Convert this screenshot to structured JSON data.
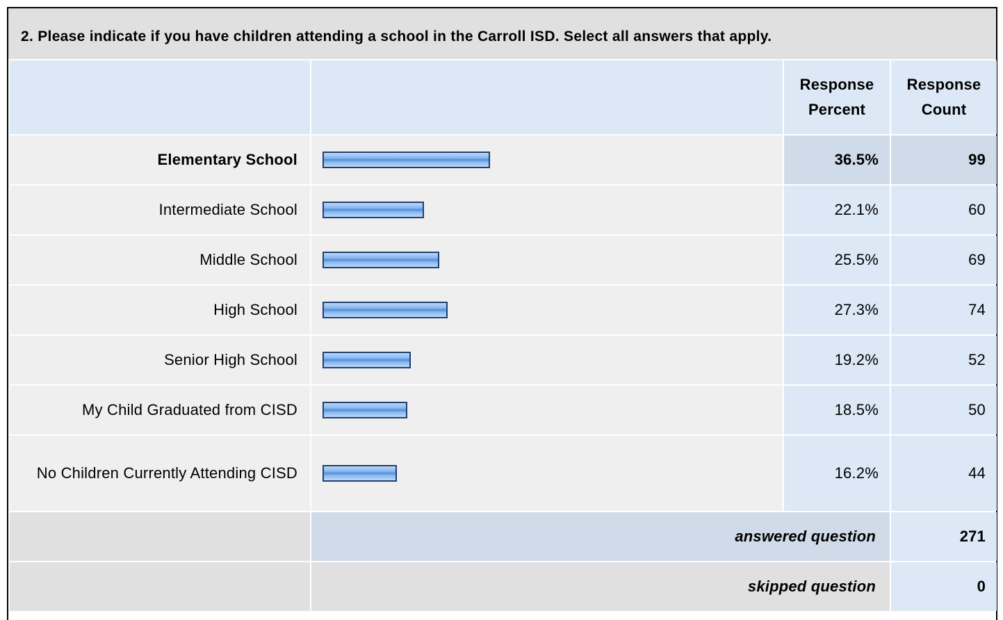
{
  "title": "2. Please indicate if you have children attending a school in the Carroll ISD. Select all answers that apply.",
  "header": {
    "percent": "Response Percent",
    "count": "Response Count"
  },
  "xlim": [
    0,
    100
  ],
  "table": {
    "rows": [
      {
        "label": "Elementary School",
        "percent": 36.5,
        "percent_label": "36.5%",
        "count": 99
      },
      {
        "label": "Intermediate School",
        "percent": 22.1,
        "percent_label": "22.1%",
        "count": 60
      },
      {
        "label": "Middle School",
        "percent": 25.5,
        "percent_label": "25.5%",
        "count": 69
      },
      {
        "label": "High School",
        "percent": 27.3,
        "percent_label": "27.3%",
        "count": 74
      },
      {
        "label": "Senior High School",
        "percent": 19.2,
        "percent_label": "19.2%",
        "count": 52
      },
      {
        "label": "My Child Graduated from CISD",
        "percent": 18.5,
        "percent_label": "18.5%",
        "count": 50
      },
      {
        "label": "No Children Currently Attending CISD",
        "percent": 16.2,
        "percent_label": "16.2%",
        "count": 44
      }
    ]
  },
  "footer": {
    "answered": "answered question",
    "answered_count": 271,
    "skipped": "skipped question",
    "skipped_count": 0
  }
}
